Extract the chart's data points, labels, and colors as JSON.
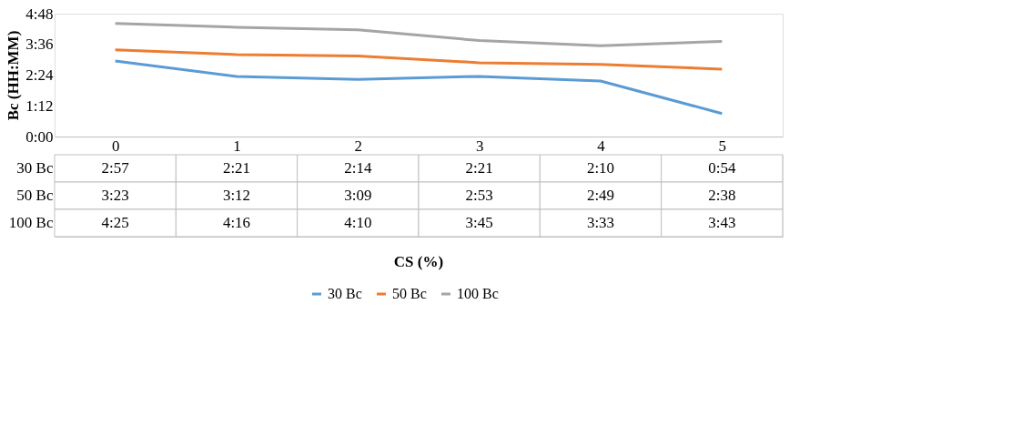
{
  "chart_data": {
    "type": "line",
    "annotations": [
      "CS (%)"
    ],
    "ylabel": "Bc (HH:MM)",
    "categories": [
      "0",
      "1",
      "2",
      "3",
      "4",
      "5"
    ],
    "ylim": [
      0,
      4.8
    ],
    "yticks": [
      {
        "value": 0,
        "label": "0:00"
      },
      {
        "value": 1.2,
        "label": "1:12"
      },
      {
        "value": 2.4,
        "label": "2:24"
      },
      {
        "value": 3.6,
        "label": "3:36"
      },
      {
        "value": 4.8,
        "label": "4:48"
      }
    ],
    "series": [
      {
        "name": "30 Bc",
        "color": "#5b9bd5",
        "values": [
          2.95,
          2.35,
          2.2333,
          2.35,
          2.1667,
          0.9
        ],
        "value_labels": [
          "2:57",
          "2:21",
          "2:14",
          "2:21",
          "2:10",
          "0:54"
        ]
      },
      {
        "name": "50 Bc",
        "color": "#ed7d31",
        "values": [
          3.3833,
          3.2,
          3.15,
          2.8833,
          2.8167,
          2.6333
        ],
        "value_labels": [
          "3:23",
          "3:12",
          "3:09",
          "2:53",
          "2:49",
          "2:38"
        ]
      },
      {
        "name": "100 Bc",
        "color": "#a5a5a5",
        "values": [
          4.4167,
          4.2667,
          4.1667,
          3.75,
          3.55,
          3.7167
        ],
        "value_labels": [
          "4:25",
          "4:16",
          "4:10",
          "3:45",
          "3:33",
          "3:43"
        ]
      }
    ],
    "legend": "bottom",
    "grid": false,
    "marker": "none",
    "line_style": "solid"
  }
}
